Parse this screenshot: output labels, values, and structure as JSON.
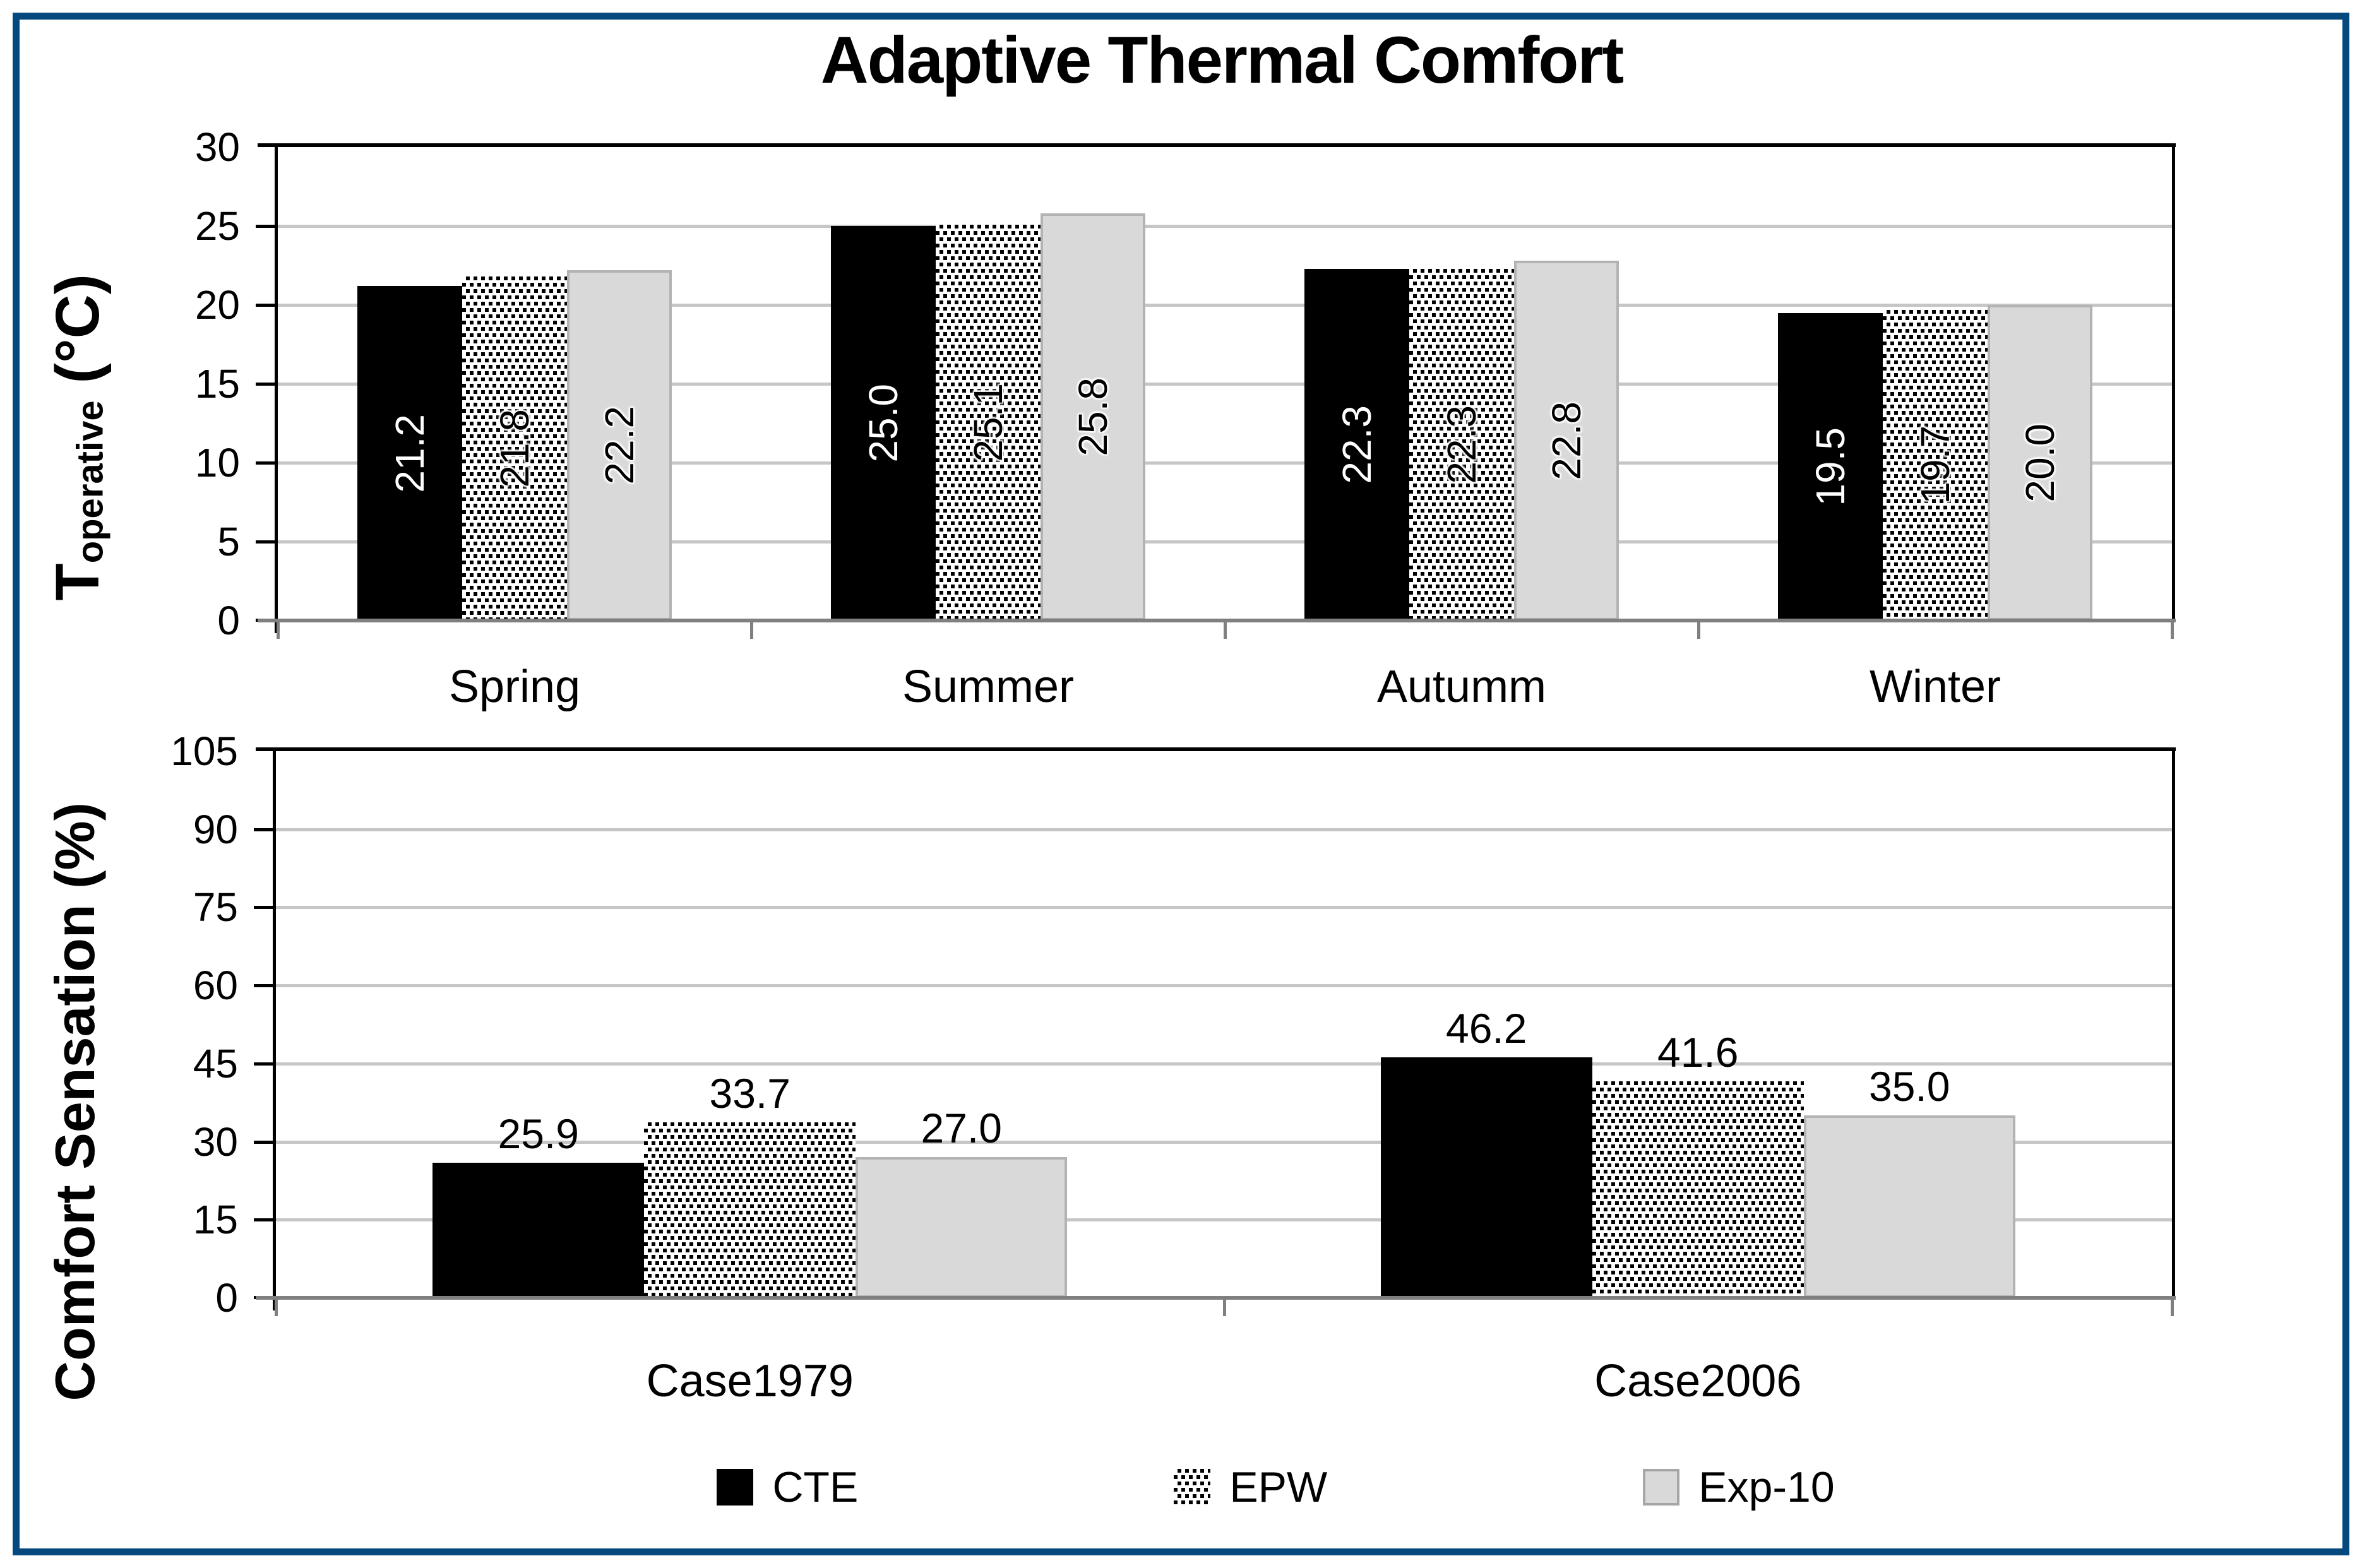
{
  "title": "Adaptive Thermal Comfort",
  "axis_titles": {
    "top": {
      "main": "T",
      "sub": "operative",
      "unit": " (°C)"
    },
    "bottom": "Comfort Sensation (%)"
  },
  "legend": [
    {
      "label": "CTE",
      "swatch": "solid-black"
    },
    {
      "label": "EPW",
      "swatch": "black-dot-pattern"
    },
    {
      "label": "Exp-10",
      "swatch": "light-gray"
    }
  ],
  "colors": {
    "frame_border": "#04497e",
    "cte_fill": "#000000",
    "epw_dot": "#000000",
    "epw_background": "#ffffff",
    "exp10_fill": "#d9d9d9",
    "exp10_border": "#b3b3b3",
    "gridline": "#c6c6c6",
    "axis_baseline": "#808080",
    "plot_border": "#000000"
  },
  "chart_data": [
    {
      "type": "bar",
      "title": "Adaptive Thermal Comfort",
      "ylabel": "T_operative (°C)",
      "xlabel": "",
      "categories": [
        "Spring",
        "Summer",
        "Autumm",
        "Winter"
      ],
      "series": [
        {
          "name": "CTE",
          "values": [
            21.2,
            25.0,
            22.3,
            19.5
          ]
        },
        {
          "name": "EPW",
          "values": [
            21.8,
            25.1,
            22.3,
            19.7
          ]
        },
        {
          "name": "Exp-10",
          "values": [
            22.2,
            25.8,
            22.8,
            20.0
          ]
        }
      ],
      "ylim": [
        0,
        30
      ],
      "ytick_step": 5,
      "yticks": [
        "0",
        "5",
        "10",
        "15",
        "20",
        "25",
        "30"
      ],
      "grid": true,
      "value_labels": "inside-vertical-rotated",
      "legend_position": "shared-bottom"
    },
    {
      "type": "bar",
      "title": "",
      "ylabel": "Comfort Sensation (%)",
      "xlabel": "",
      "categories": [
        "Case1979",
        "Case2006"
      ],
      "series": [
        {
          "name": "CTE",
          "values": [
            25.9,
            46.2
          ]
        },
        {
          "name": "EPW",
          "values": [
            33.7,
            41.6
          ]
        },
        {
          "name": "Exp-10",
          "values": [
            27.0,
            35.0
          ]
        }
      ],
      "ylim": [
        0,
        105
      ],
      "ytick_step": 15,
      "yticks": [
        "0",
        "15",
        "30",
        "45",
        "60",
        "75",
        "90",
        "105"
      ],
      "grid": true,
      "value_labels": "above",
      "legend_position": "shared-bottom"
    }
  ]
}
